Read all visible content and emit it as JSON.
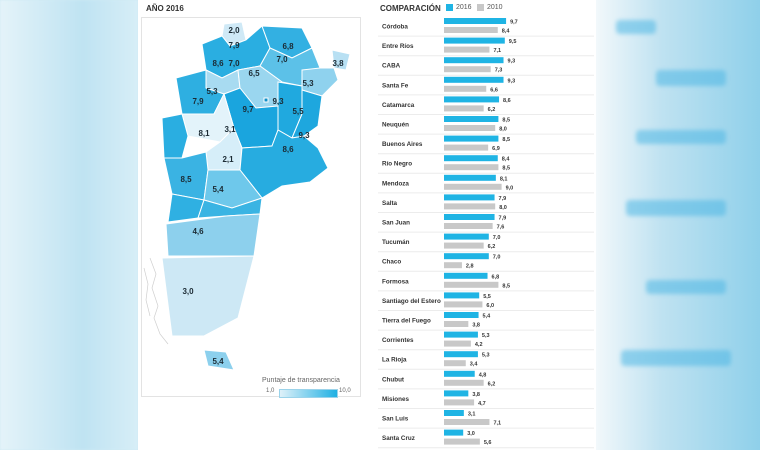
{
  "map": {
    "title": "AÑO 2016",
    "scale_label": "Puntaje de transparencia",
    "scale_min": "1,0",
    "scale_max": "10,0",
    "region_labels": [
      "2,0",
      "7,9",
      "6,8",
      "8,6",
      "7,0",
      "7,0",
      "6,5",
      "5,3",
      "3,8",
      "5,3",
      "7,9",
      "9,7",
      "9,3",
      "5,5",
      "3,1",
      "8,1",
      "9,3",
      "8,6",
      "2,1",
      "8,5",
      "5,4",
      "4,6",
      "3,0",
      "5,4"
    ]
  },
  "comparison": {
    "title": "COMPARACIÓN",
    "legend_2016": "2016",
    "legend_2010": "2010"
  },
  "colors": {
    "series_2016": "#1fb4e4",
    "series_2010": "#c8c8c8",
    "map_dark": "#1fa8e0",
    "map_light": "#d8eef8"
  },
  "chart_data": {
    "type": "bar",
    "orientation": "horizontal",
    "title": "COMPARACIÓN",
    "categories": [
      "Córdoba",
      "Entre Ríos",
      "CABA",
      "Santa Fe",
      "Catamarca",
      "Neuquén",
      "Buenos Aires",
      "Río Negro",
      "Mendoza",
      "Salta",
      "San Juan",
      "Tucumán",
      "Chaco",
      "Formosa",
      "Santiago del Estero",
      "Tierra del Fuego",
      "Corrientes",
      "La Rioja",
      "Chubut",
      "Misiones",
      "San Luis",
      "Santa Cruz"
    ],
    "series": [
      {
        "name": "2016",
        "values": [
          9.7,
          9.5,
          9.3,
          9.3,
          8.6,
          8.5,
          8.5,
          8.4,
          8.1,
          7.9,
          7.9,
          7.0,
          7.0,
          6.8,
          5.5,
          5.4,
          5.3,
          5.3,
          4.8,
          3.8,
          3.1,
          3.0
        ],
        "labels": [
          "9,7",
          "9,5",
          "9,3",
          "9,3",
          "8,6",
          "8,5",
          "8,5",
          "8,4",
          "8,1",
          "7,9",
          "7,9",
          "7,0",
          "7,0",
          "6,8",
          "5,5",
          "5,4",
          "5,3",
          "5,3",
          "4,8",
          "3,8",
          "3,1",
          "3,0"
        ]
      },
      {
        "name": "2010",
        "values": [
          8.4,
          7.1,
          7.3,
          6.6,
          6.2,
          8.0,
          6.9,
          8.5,
          9.0,
          8.0,
          7.6,
          6.2,
          2.8,
          8.5,
          6.0,
          3.8,
          4.2,
          3.4,
          6.2,
          4.7,
          7.1,
          5.6
        ],
        "labels": [
          "8,4",
          "7,1",
          "7,3",
          "6,6",
          "6,2",
          "8,0",
          "6,9",
          "8,5",
          "9,0",
          "8,0",
          "7,6",
          "6,2",
          "2,8",
          "8,5",
          "6,0",
          "3,8",
          "4,2",
          "3,4",
          "6,2",
          "4,7",
          "7,1",
          "5,6"
        ]
      }
    ],
    "xlim": [
      0,
      10
    ]
  }
}
